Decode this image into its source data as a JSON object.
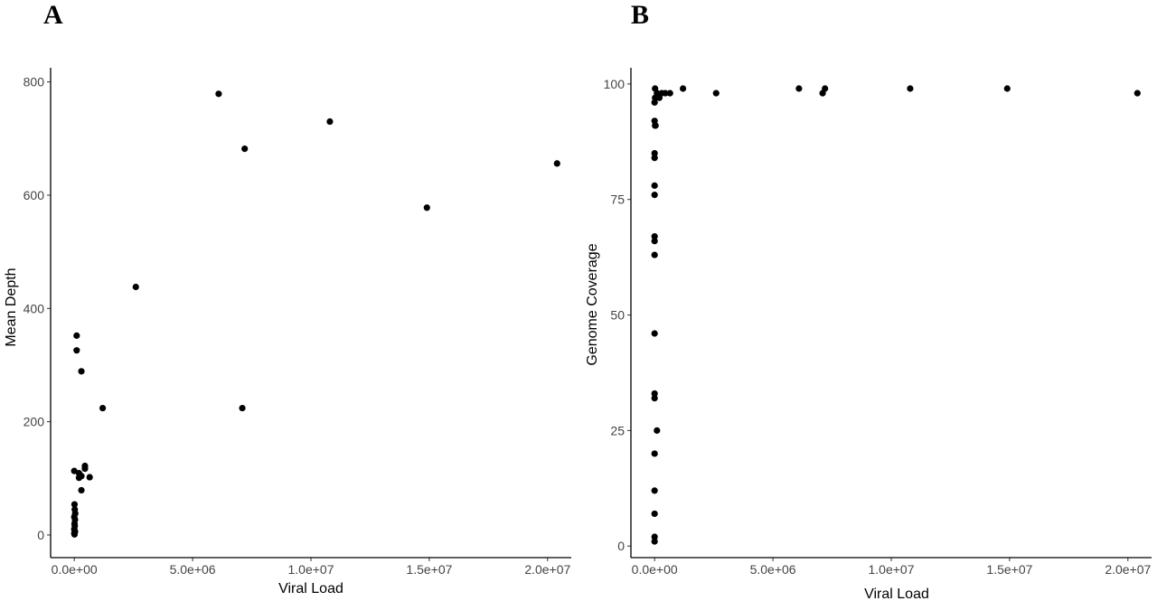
{
  "chart_data": [
    {
      "type": "scatter",
      "panel_label": "A",
      "xlabel": "Viral Load",
      "ylabel": "Mean Depth",
      "xlim": [
        -1000000,
        21000000
      ],
      "ylim": [
        -40,
        825
      ],
      "xticks": [
        0,
        5000000,
        10000000,
        15000000,
        20000000
      ],
      "xtick_labels": [
        "0.0e+00",
        "5.0e+06",
        "1.0e+07",
        "1.5e+07",
        "2.0e+07"
      ],
      "yticks": [
        0,
        200,
        400,
        600,
        800
      ],
      "ytick_labels": [
        "0",
        "200",
        "400",
        "600",
        "800"
      ],
      "grid": false,
      "points": [
        {
          "x": 6100000,
          "y": 779
        },
        {
          "x": 10800000,
          "y": 730
        },
        {
          "x": 7200000,
          "y": 682
        },
        {
          "x": 20400000,
          "y": 656
        },
        {
          "x": 14900000,
          "y": 578
        },
        {
          "x": 2600000,
          "y": 438
        },
        {
          "x": 7100000,
          "y": 224
        },
        {
          "x": 1200000,
          "y": 224
        },
        {
          "x": 100000,
          "y": 352
        },
        {
          "x": 100000,
          "y": 326
        },
        {
          "x": 300000,
          "y": 289
        },
        {
          "x": 0,
          "y": 113
        },
        {
          "x": 450000,
          "y": 122
        },
        {
          "x": 450000,
          "y": 117
        },
        {
          "x": 200000,
          "y": 109
        },
        {
          "x": 300000,
          "y": 104
        },
        {
          "x": 200000,
          "y": 101
        },
        {
          "x": 650000,
          "y": 102
        },
        {
          "x": 300000,
          "y": 79
        },
        {
          "x": 10000,
          "y": 54
        },
        {
          "x": 20000,
          "y": 45
        },
        {
          "x": 40000,
          "y": 38
        },
        {
          "x": 0,
          "y": 32
        },
        {
          "x": 30000,
          "y": 27
        },
        {
          "x": 10000,
          "y": 20
        },
        {
          "x": 20000,
          "y": 16
        },
        {
          "x": 0,
          "y": 10
        },
        {
          "x": 30000,
          "y": 6
        },
        {
          "x": 0,
          "y": 3
        },
        {
          "x": 10000,
          "y": 1
        }
      ]
    },
    {
      "type": "scatter",
      "panel_label": "B",
      "xlabel": "Viral Load",
      "ylabel": "Genome Coverage",
      "xlim": [
        -1000000,
        21000000
      ],
      "ylim": [
        -2.5,
        103.5
      ],
      "xticks": [
        0,
        5000000,
        10000000,
        15000000,
        20000000
      ],
      "xtick_labels": [
        "0.0e+00",
        "5.0e+06",
        "1.0e+07",
        "1.5e+07",
        "2.0e+07"
      ],
      "yticks": [
        0,
        25,
        50,
        75,
        100
      ],
      "ytick_labels": [
        "0",
        "25",
        "50",
        "75",
        "100"
      ],
      "grid": false,
      "points": [
        {
          "x": 20000,
          "y": 99
        },
        {
          "x": 1200000,
          "y": 99
        },
        {
          "x": 6100000,
          "y": 99
        },
        {
          "x": 7200000,
          "y": 99
        },
        {
          "x": 10800000,
          "y": 99
        },
        {
          "x": 14900000,
          "y": 99
        },
        {
          "x": 20400000,
          "y": 98
        },
        {
          "x": 7100000,
          "y": 98
        },
        {
          "x": 2600000,
          "y": 98
        },
        {
          "x": 100000,
          "y": 98
        },
        {
          "x": 300000,
          "y": 98
        },
        {
          "x": 450000,
          "y": 98
        },
        {
          "x": 650000,
          "y": 98
        },
        {
          "x": 200000,
          "y": 97
        },
        {
          "x": 20000,
          "y": 97
        },
        {
          "x": 0,
          "y": 96
        },
        {
          "x": 0,
          "y": 92
        },
        {
          "x": 20000,
          "y": 91
        },
        {
          "x": 40000,
          "y": 91
        },
        {
          "x": 0,
          "y": 85
        },
        {
          "x": 0,
          "y": 84
        },
        {
          "x": 0,
          "y": 78
        },
        {
          "x": 0,
          "y": 76
        },
        {
          "x": 0,
          "y": 67
        },
        {
          "x": 0,
          "y": 66
        },
        {
          "x": 0,
          "y": 63
        },
        {
          "x": 0,
          "y": 46
        },
        {
          "x": 0,
          "y": 33
        },
        {
          "x": 0,
          "y": 32
        },
        {
          "x": 100000,
          "y": 25
        },
        {
          "x": 0,
          "y": 20
        },
        {
          "x": 0,
          "y": 12
        },
        {
          "x": 0,
          "y": 7
        },
        {
          "x": 0,
          "y": 2
        },
        {
          "x": 0,
          "y": 1
        }
      ]
    }
  ]
}
